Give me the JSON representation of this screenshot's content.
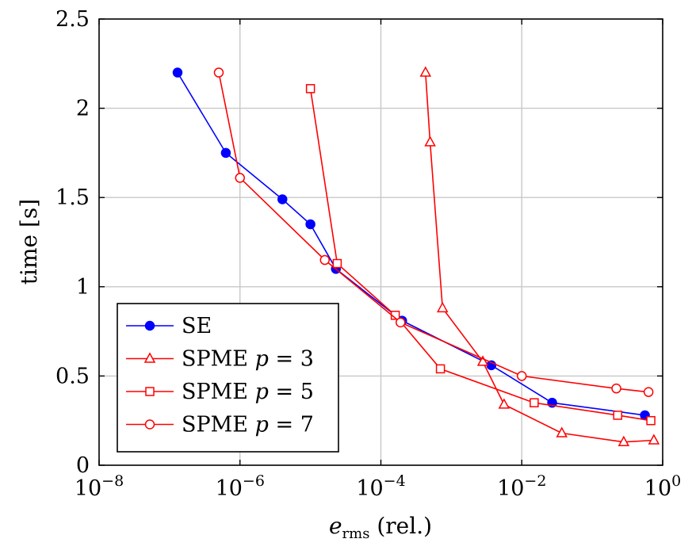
{
  "chart_data": {
    "type": "line",
    "xscale": "log",
    "xlim": [
      1e-08,
      1
    ],
    "ylim": [
      0,
      2.5
    ],
    "grid": true,
    "legend_position": "bottom-left",
    "xlabel": {
      "main": "e",
      "sub": "rms",
      "suffix": " (rel.)"
    },
    "ylabel": "time [s]",
    "x_ticks": [
      {
        "value": 1e-08,
        "base": "10",
        "exp": "−8"
      },
      {
        "value": 1e-06,
        "base": "10",
        "exp": "−6"
      },
      {
        "value": 0.0001,
        "base": "10",
        "exp": "−4"
      },
      {
        "value": 0.01,
        "base": "10",
        "exp": "−2"
      },
      {
        "value": 1,
        "base": "10",
        "exp": "0"
      }
    ],
    "y_ticks": [
      {
        "value": 0,
        "label": "0"
      },
      {
        "value": 0.5,
        "label": "0.5"
      },
      {
        "value": 1,
        "label": "1"
      },
      {
        "value": 1.5,
        "label": "1.5"
      },
      {
        "value": 2,
        "label": "2"
      },
      {
        "value": 2.5,
        "label": "2.5"
      }
    ],
    "series": [
      {
        "name": "SE",
        "legend_prefix": "SE",
        "legend_var": "",
        "legend_suffix": "",
        "color": "#0000ff",
        "marker": "filled-circle",
        "x": [
          1.3e-07,
          6.3e-07,
          4e-06,
          1e-05,
          2.3e-05,
          0.0002,
          0.0037,
          0.027,
          0.56
        ],
        "y": [
          2.2,
          1.75,
          1.49,
          1.35,
          1.1,
          0.81,
          0.56,
          0.35,
          0.28
        ]
      },
      {
        "name": "SPME p = 3",
        "legend_prefix": "SPME ",
        "legend_var": "p",
        "legend_suffix": " = 3",
        "color": "#ff0000",
        "marker": "triangle",
        "x": [
          0.00043,
          0.0005,
          0.00075,
          0.0028,
          0.0056,
          0.037,
          0.28,
          0.75
        ],
        "y": [
          2.2,
          1.81,
          0.88,
          0.58,
          0.34,
          0.18,
          0.13,
          0.14
        ]
      },
      {
        "name": "SPME p = 5",
        "legend_prefix": "SPME ",
        "legend_var": "p",
        "legend_suffix": " = 5",
        "color": "#ff0000",
        "marker": "square",
        "x": [
          1e-05,
          2.4e-05,
          0.00016,
          0.0007,
          0.015,
          0.23,
          0.68
        ],
        "y": [
          2.11,
          1.13,
          0.84,
          0.54,
          0.35,
          0.28,
          0.25
        ]
      },
      {
        "name": "SPME p = 7",
        "legend_prefix": "SPME ",
        "legend_var": "p",
        "legend_suffix": " = 7",
        "color": "#ff0000",
        "marker": "open-circle",
        "x": [
          5e-07,
          1e-06,
          1.6e-05,
          0.00019,
          0.01,
          0.22,
          0.63
        ],
        "y": [
          2.2,
          1.61,
          1.15,
          0.8,
          0.5,
          0.43,
          0.41
        ]
      }
    ]
  }
}
